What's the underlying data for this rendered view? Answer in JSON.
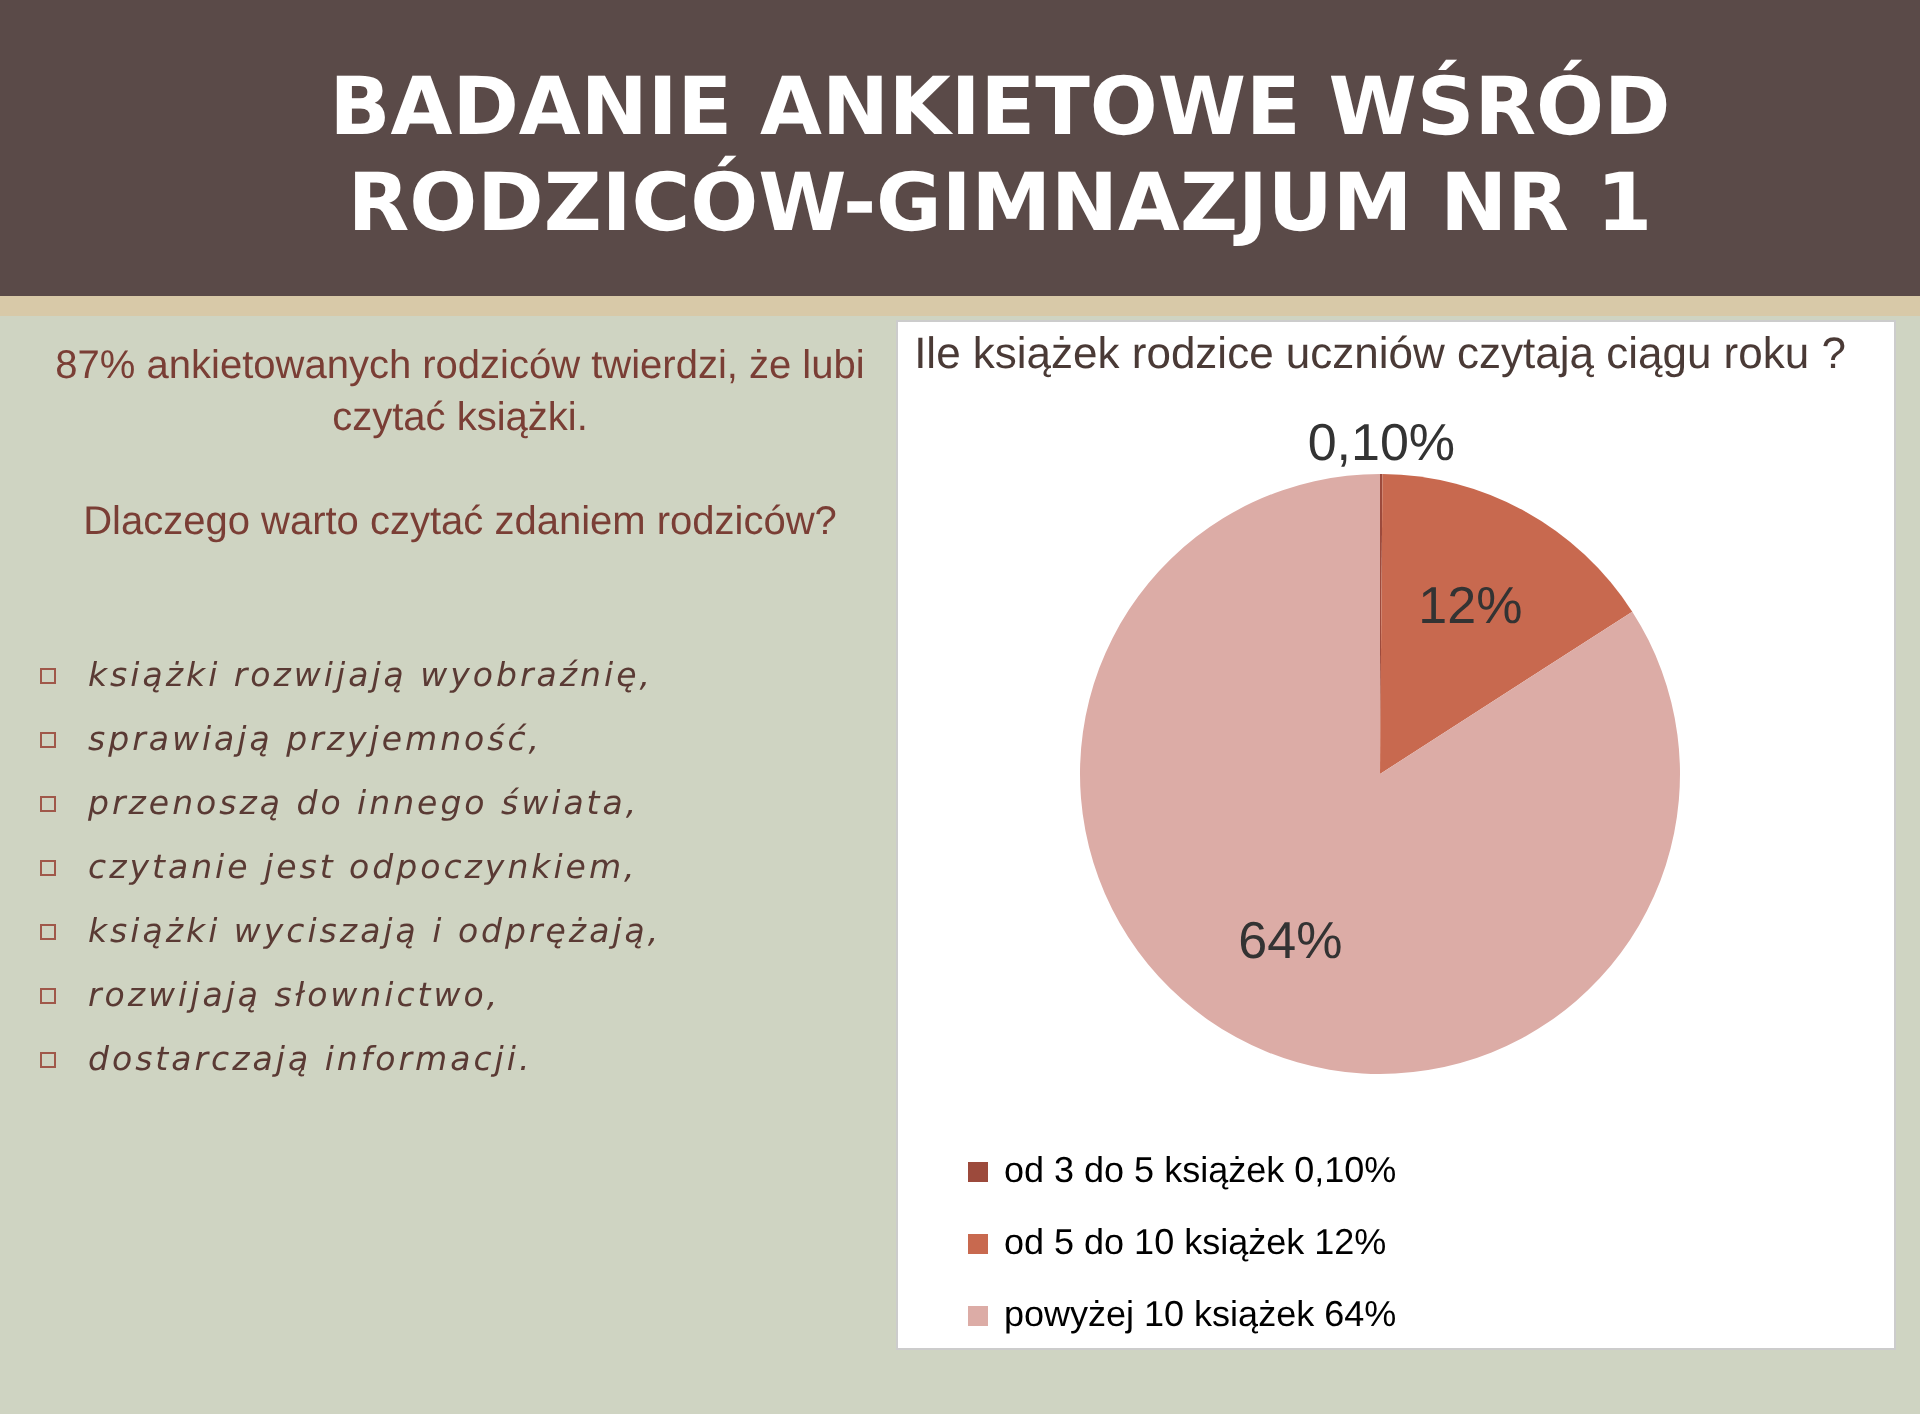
{
  "chart_data": {
    "type": "pie",
    "title": "BADANIE ANKIETOWE WŚRÓD RODZICÓW-GIMNAZJUM NR 1",
    "subtitle": "Ile książek rodzice uczniów czytają  ciągu roku ?",
    "annotations": [
      "87% ankietowanych rodziców twierdzi, że lubi czytać książki.",
      "Dlaczego warto czytać zdaniem rodziców?",
      "książki rozwijają wyobraźnię,",
      "sprawiają przyjemność,",
      "przenoszą do innego świata,",
      "czytanie jest odpoczynkiem,",
      "książki wyciszają  i odprężają,",
      "rozwijają słownictwo,",
      "dostarczają informacji."
    ],
    "categories": [
      "od 3 do 5 książek",
      "od 5 do 10 książek",
      "powyżej 10 książek "
    ],
    "values": [
      0.1,
      12,
      64
    ],
    "value_labels": [
      "0,10%",
      "12%",
      "64%"
    ],
    "colors": [
      "#9c4a3c",
      "#c8694f",
      "#dcaca6"
    ],
    "legend": "bottom"
  }
}
